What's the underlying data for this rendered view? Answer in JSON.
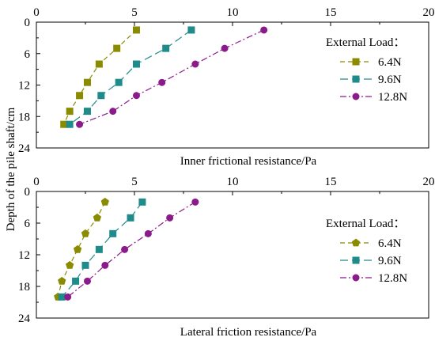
{
  "chart_data": [
    {
      "type": "line",
      "title": "",
      "xlabel": "Inner frictional resistance/Pa",
      "ylabel": "Depth of the pile shaft/cm",
      "xlim": [
        0,
        20
      ],
      "ylim": [
        24,
        0
      ],
      "x_axis_position": "top",
      "x_ticks": [
        0,
        5,
        10,
        15,
        20
      ],
      "y_ticks": [
        0,
        6,
        12,
        18,
        24
      ],
      "grid": false,
      "legend_title": "External Load：",
      "legend_position": "right",
      "series": [
        {
          "name": "6.4N",
          "marker": "square",
          "color": "#8b8b00",
          "dash": "6,4",
          "points": [
            {
              "x": 5.1,
              "y": 1.5
            },
            {
              "x": 4.1,
              "y": 5.0
            },
            {
              "x": 3.2,
              "y": 8.0
            },
            {
              "x": 2.6,
              "y": 11.5
            },
            {
              "x": 2.2,
              "y": 14.0
            },
            {
              "x": 1.7,
              "y": 17.0
            },
            {
              "x": 1.4,
              "y": 19.5
            }
          ]
        },
        {
          "name": "9.6N",
          "marker": "square",
          "color": "#1f8b8b",
          "dash": "10,5",
          "points": [
            {
              "x": 7.9,
              "y": 1.5
            },
            {
              "x": 6.6,
              "y": 5.0
            },
            {
              "x": 5.1,
              "y": 8.0
            },
            {
              "x": 4.2,
              "y": 11.5
            },
            {
              "x": 3.3,
              "y": 14.0
            },
            {
              "x": 2.6,
              "y": 17.0
            },
            {
              "x": 1.7,
              "y": 19.5
            }
          ]
        },
        {
          "name": "12.8N",
          "marker": "circle",
          "color": "#8b1a8b",
          "dash": "8,3,2,3",
          "points": [
            {
              "x": 11.6,
              "y": 1.5
            },
            {
              "x": 9.6,
              "y": 5.0
            },
            {
              "x": 8.1,
              "y": 8.0
            },
            {
              "x": 6.4,
              "y": 11.5
            },
            {
              "x": 5.1,
              "y": 14.0
            },
            {
              "x": 3.9,
              "y": 17.0
            },
            {
              "x": 2.2,
              "y": 19.5
            }
          ]
        }
      ]
    },
    {
      "type": "line",
      "title": "",
      "xlabel": "Lateral friction resistance/Pa",
      "ylabel": "Depth of the pile shaft/cm",
      "xlim": [
        0,
        20
      ],
      "ylim": [
        24,
        0
      ],
      "x_axis_position": "top",
      "x_ticks": [
        0,
        5,
        10,
        15,
        20
      ],
      "y_ticks": [
        0,
        6,
        12,
        18,
        24
      ],
      "grid": false,
      "legend_title": "External Load：",
      "legend_position": "right",
      "series": [
        {
          "name": "6.4N",
          "marker": "pentagon",
          "color": "#8b8b00",
          "dash": "6,4",
          "points": [
            {
              "x": 3.5,
              "y": 2.0
            },
            {
              "x": 3.1,
              "y": 5.0
            },
            {
              "x": 2.5,
              "y": 8.0
            },
            {
              "x": 2.1,
              "y": 11.0
            },
            {
              "x": 1.7,
              "y": 14.0
            },
            {
              "x": 1.3,
              "y": 17.0
            },
            {
              "x": 1.1,
              "y": 20.0
            }
          ]
        },
        {
          "name": "9.6N",
          "marker": "square",
          "color": "#1f8b8b",
          "dash": "10,5",
          "points": [
            {
              "x": 5.4,
              "y": 2.0
            },
            {
              "x": 4.8,
              "y": 5.0
            },
            {
              "x": 3.9,
              "y": 8.0
            },
            {
              "x": 3.2,
              "y": 11.0
            },
            {
              "x": 2.5,
              "y": 14.0
            },
            {
              "x": 2.0,
              "y": 17.0
            },
            {
              "x": 1.3,
              "y": 20.0
            }
          ]
        },
        {
          "name": "12.8N",
          "marker": "circle",
          "color": "#8b1a8b",
          "dash": "8,3,2,3",
          "points": [
            {
              "x": 8.1,
              "y": 2.0
            },
            {
              "x": 6.8,
              "y": 5.0
            },
            {
              "x": 5.7,
              "y": 8.0
            },
            {
              "x": 4.5,
              "y": 11.0
            },
            {
              "x": 3.5,
              "y": 14.0
            },
            {
              "x": 2.6,
              "y": 17.0
            },
            {
              "x": 1.6,
              "y": 20.0
            }
          ]
        }
      ]
    }
  ]
}
